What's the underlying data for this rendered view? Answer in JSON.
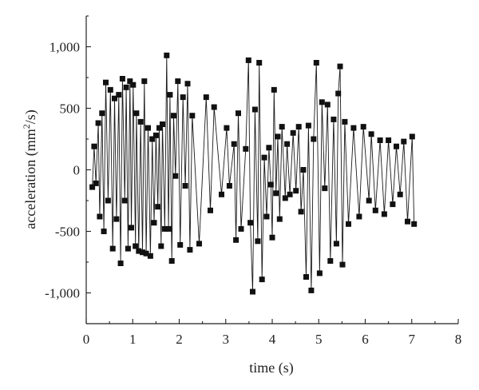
{
  "chart_data": {
    "type": "line",
    "title": "",
    "xlabel": "time (s)",
    "ylabel_parts": [
      "acceleration (mm",
      "2",
      "/s)"
    ],
    "xlim": [
      0,
      8
    ],
    "ylim": [
      -1250,
      1250
    ],
    "x_ticks": [
      0,
      1,
      2,
      3,
      4,
      5,
      6,
      7,
      8
    ],
    "x_tick_labels": [
      "0",
      "1",
      "2",
      "3",
      "4",
      "5",
      "6",
      "7",
      "8"
    ],
    "y_ticks": [
      -1000,
      -500,
      0,
      500,
      1000
    ],
    "y_tick_labels": [
      "-1,000",
      "-500",
      "0",
      "500",
      "1,000"
    ],
    "grid": false,
    "legend": "none",
    "marker": "square",
    "color": "#111111",
    "series": [
      {
        "points": [
          [
            0.13,
            -140
          ],
          [
            0.17,
            190
          ],
          [
            0.21,
            -110
          ],
          [
            0.26,
            380
          ],
          [
            0.29,
            -380
          ],
          [
            0.34,
            460
          ],
          [
            0.38,
            -500
          ],
          [
            0.42,
            710
          ],
          [
            0.47,
            -250
          ],
          [
            0.52,
            650
          ],
          [
            0.57,
            -640
          ],
          [
            0.61,
            580
          ],
          [
            0.65,
            -400
          ],
          [
            0.7,
            610
          ],
          [
            0.74,
            -760
          ],
          [
            0.78,
            740
          ],
          [
            0.83,
            -250
          ],
          [
            0.86,
            670
          ],
          [
            0.9,
            -640
          ],
          [
            0.94,
            720
          ],
          [
            0.97,
            -470
          ],
          [
            1.01,
            690
          ],
          [
            1.06,
            -620
          ],
          [
            1.08,
            460
          ],
          [
            1.13,
            -660
          ],
          [
            1.17,
            390
          ],
          [
            1.21,
            -670
          ],
          [
            1.25,
            720
          ],
          [
            1.29,
            -680
          ],
          [
            1.33,
            340
          ],
          [
            1.38,
            -700
          ],
          [
            1.42,
            250
          ],
          [
            1.46,
            -430
          ],
          [
            1.5,
            280
          ],
          [
            1.54,
            -300
          ],
          [
            1.57,
            340
          ],
          [
            1.61,
            -620
          ],
          [
            1.64,
            370
          ],
          [
            1.69,
            -480
          ],
          [
            1.73,
            930
          ],
          [
            1.77,
            -480
          ],
          [
            1.8,
            610
          ],
          [
            1.84,
            -740
          ],
          [
            1.88,
            440
          ],
          [
            1.92,
            -50
          ],
          [
            1.97,
            720
          ],
          [
            2.02,
            -610
          ],
          [
            2.08,
            590
          ],
          [
            2.13,
            -130
          ],
          [
            2.18,
            700
          ],
          [
            2.23,
            -650
          ],
          [
            2.28,
            440
          ],
          [
            2.43,
            -600
          ],
          [
            2.58,
            590
          ],
          [
            2.67,
            -330
          ],
          [
            2.75,
            510
          ],
          [
            2.91,
            -200
          ],
          [
            3.02,
            340
          ],
          [
            3.08,
            -130
          ],
          [
            3.18,
            210
          ],
          [
            3.22,
            -570
          ],
          [
            3.27,
            460
          ],
          [
            3.33,
            -480
          ],
          [
            3.43,
            170
          ],
          [
            3.49,
            890
          ],
          [
            3.53,
            -430
          ],
          [
            3.58,
            -990
          ],
          [
            3.63,
            490
          ],
          [
            3.69,
            -580
          ],
          [
            3.72,
            870
          ],
          [
            3.78,
            -890
          ],
          [
            3.83,
            100
          ],
          [
            3.88,
            -380
          ],
          [
            3.93,
            180
          ],
          [
            3.97,
            -120
          ],
          [
            4.0,
            -550
          ],
          [
            4.04,
            650
          ],
          [
            4.08,
            -190
          ],
          [
            4.12,
            270
          ],
          [
            4.16,
            -400
          ],
          [
            4.21,
            350
          ],
          [
            4.28,
            -230
          ],
          [
            4.32,
            210
          ],
          [
            4.38,
            -200
          ],
          [
            4.45,
            300
          ],
          [
            4.51,
            -170
          ],
          [
            4.57,
            350
          ],
          [
            4.62,
            -340
          ],
          [
            4.67,
            0
          ],
          [
            4.73,
            -870
          ],
          [
            4.78,
            360
          ],
          [
            4.84,
            -980
          ],
          [
            4.89,
            250
          ],
          [
            4.95,
            870
          ],
          [
            5.02,
            -840
          ],
          [
            5.07,
            550
          ],
          [
            5.13,
            -150
          ],
          [
            5.19,
            530
          ],
          [
            5.25,
            -740
          ],
          [
            5.32,
            410
          ],
          [
            5.38,
            -600
          ],
          [
            5.42,
            620
          ],
          [
            5.46,
            840
          ],
          [
            5.51,
            -770
          ],
          [
            5.56,
            390
          ],
          [
            5.64,
            -440
          ],
          [
            5.75,
            340
          ],
          [
            5.87,
            -380
          ],
          [
            5.96,
            350
          ],
          [
            6.08,
            -250
          ],
          [
            6.13,
            290
          ],
          [
            6.22,
            -330
          ],
          [
            6.32,
            240
          ],
          [
            6.41,
            -360
          ],
          [
            6.5,
            240
          ],
          [
            6.59,
            -280
          ],
          [
            6.67,
            190
          ],
          [
            6.75,
            -200
          ],
          [
            6.83,
            230
          ],
          [
            6.91,
            -420
          ],
          [
            7.01,
            270
          ],
          [
            7.05,
            -440
          ]
        ]
      }
    ]
  }
}
